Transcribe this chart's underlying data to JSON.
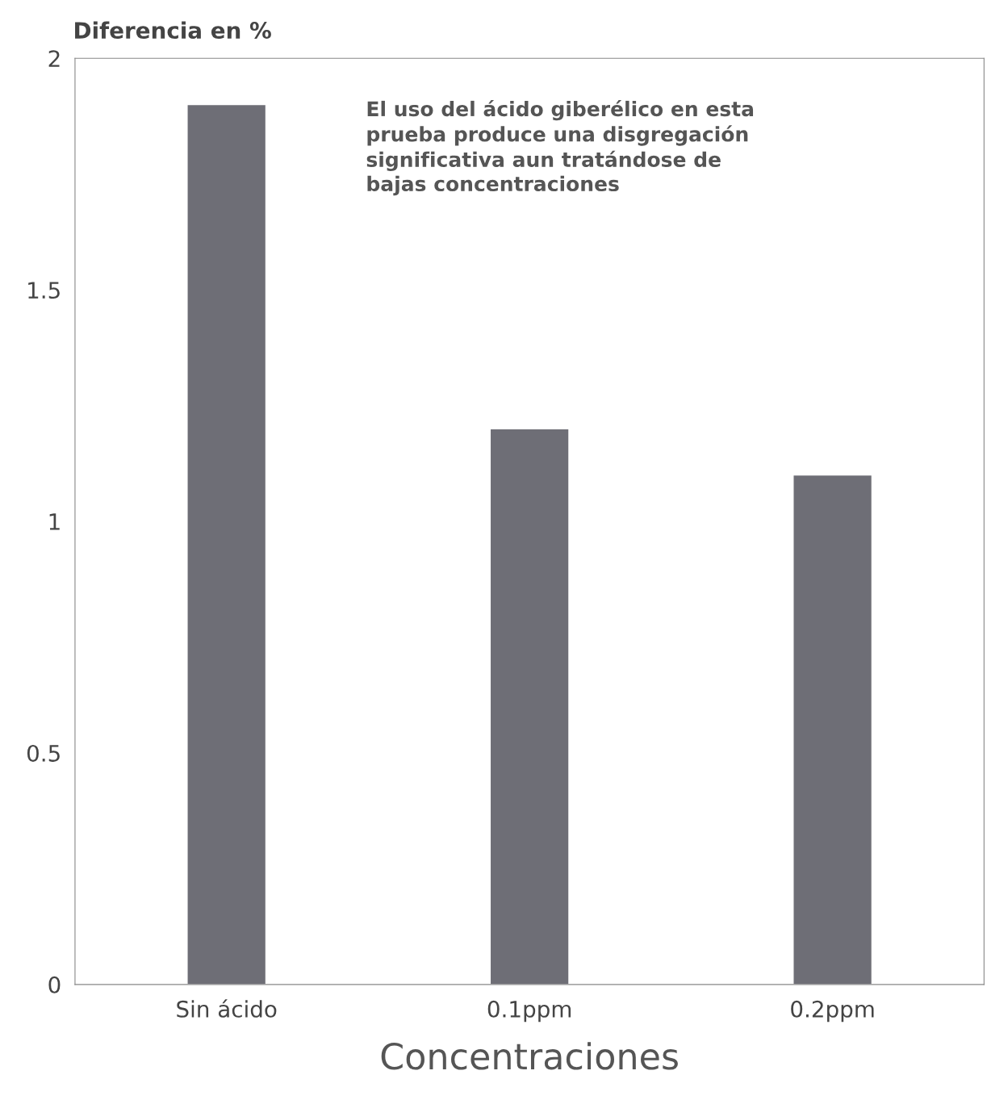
{
  "chart_data": {
    "type": "bar",
    "ylabel": "Diferencia en %",
    "xlabel": "Concentraciones",
    "categories": [
      "Sin ácido",
      "0.1ppm",
      "0.2ppm"
    ],
    "values": [
      1.9,
      1.2,
      1.1
    ],
    "color": "#6e6e76",
    "ylim": [
      0,
      2
    ],
    "yticks": [
      0,
      0.5,
      1,
      1.5,
      2
    ],
    "grid": false,
    "legend": false,
    "annotations": [
      "El uso del ácido giberélico en esta\nprueba produce una disgregación\nsignificativa aun tratándose de\nbajas concentraciones"
    ]
  }
}
